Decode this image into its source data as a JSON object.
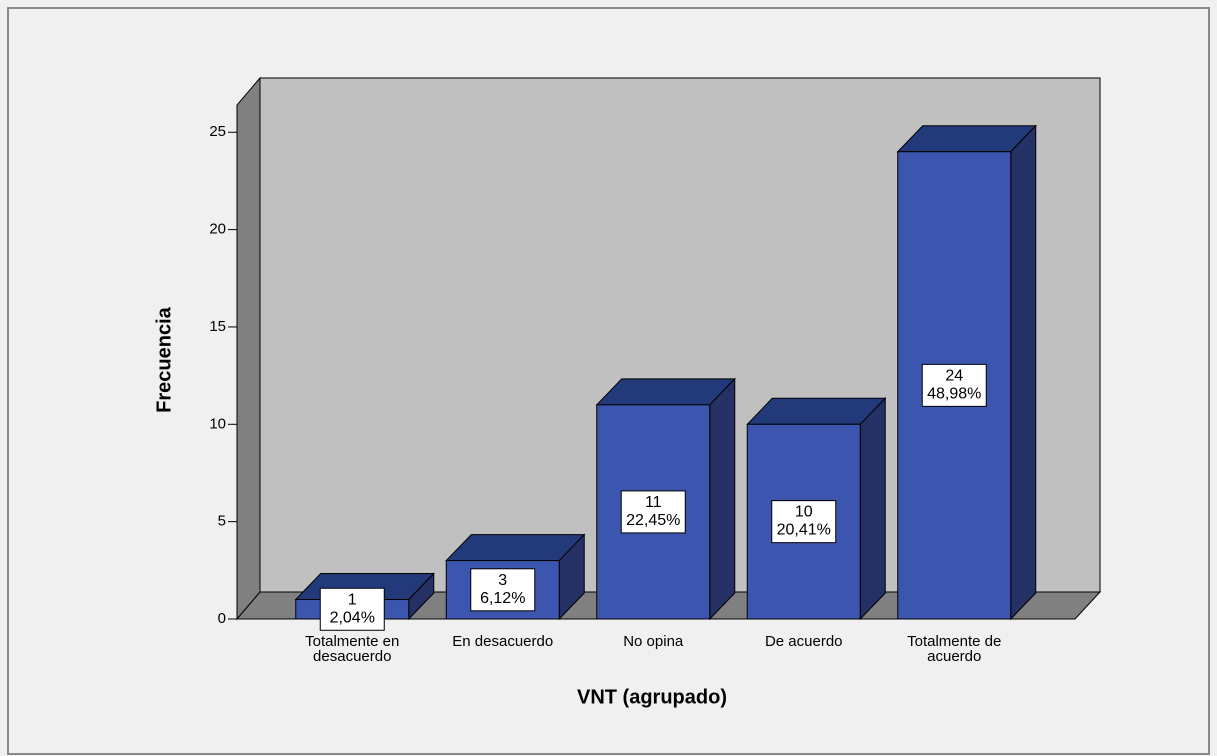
{
  "chart_data": {
    "type": "bar3d",
    "xlabel": "VNT (agrupado)",
    "ylabel": "Frecuencia",
    "categories": [
      "Totalmente en desacuerdo",
      "En desacuerdo",
      "No opina",
      "De acuerdo",
      "Totalmente de acuerdo"
    ],
    "values": [
      1,
      3,
      11,
      10,
      24
    ],
    "percentages": [
      2.04,
      6.12,
      22.45,
      20.41,
      48.98
    ],
    "percentage_labels": [
      "2,04%",
      "6,12%",
      "22,45%",
      "20,41%",
      "48,98%"
    ],
    "color": "#3c56b0",
    "ylim": [
      0,
      26.4
    ],
    "yticks": [
      0,
      5,
      10,
      15,
      20,
      25
    ]
  }
}
